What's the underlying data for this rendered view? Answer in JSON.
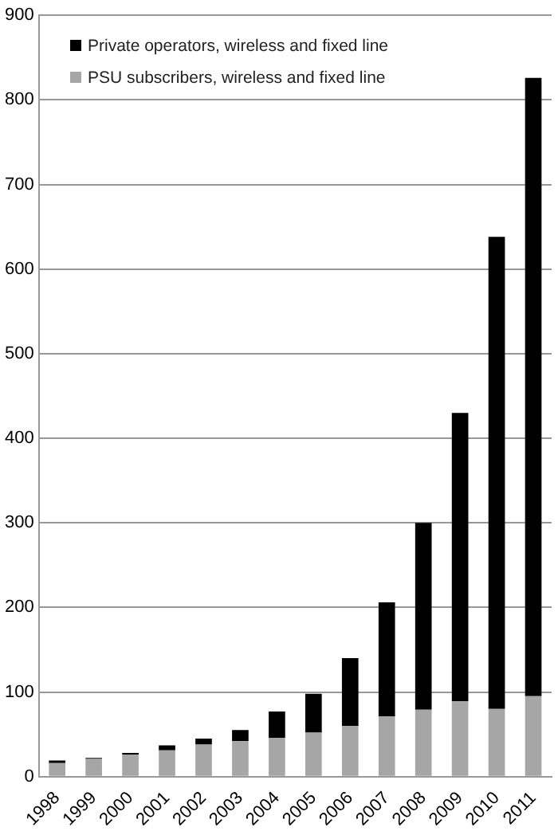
{
  "chart_data": {
    "type": "bar",
    "stacked": true,
    "categories": [
      "1998",
      "1999",
      "2000",
      "2001",
      "2002",
      "2003",
      "2004",
      "2005",
      "2006",
      "2007",
      "2008",
      "2009",
      "2010",
      "2011"
    ],
    "series": [
      {
        "name": "PSU subscribers, wireless and fixed line",
        "color": "#a6a6a6",
        "values": [
          16,
          21,
          26,
          31,
          38,
          42,
          46,
          52,
          60,
          71,
          79,
          89,
          80,
          95
        ]
      },
      {
        "name": "Private operators, wireless and fixed line",
        "color": "#000000",
        "values": [
          3,
          1,
          2,
          6,
          7,
          13,
          31,
          46,
          80,
          135,
          221,
          341,
          558,
          731
        ]
      }
    ],
    "ylim": [
      0,
      900
    ],
    "yticks": [
      0,
      100,
      200,
      300,
      400,
      500,
      600,
      700,
      800,
      900
    ],
    "grid": "y",
    "legend": "top left"
  }
}
